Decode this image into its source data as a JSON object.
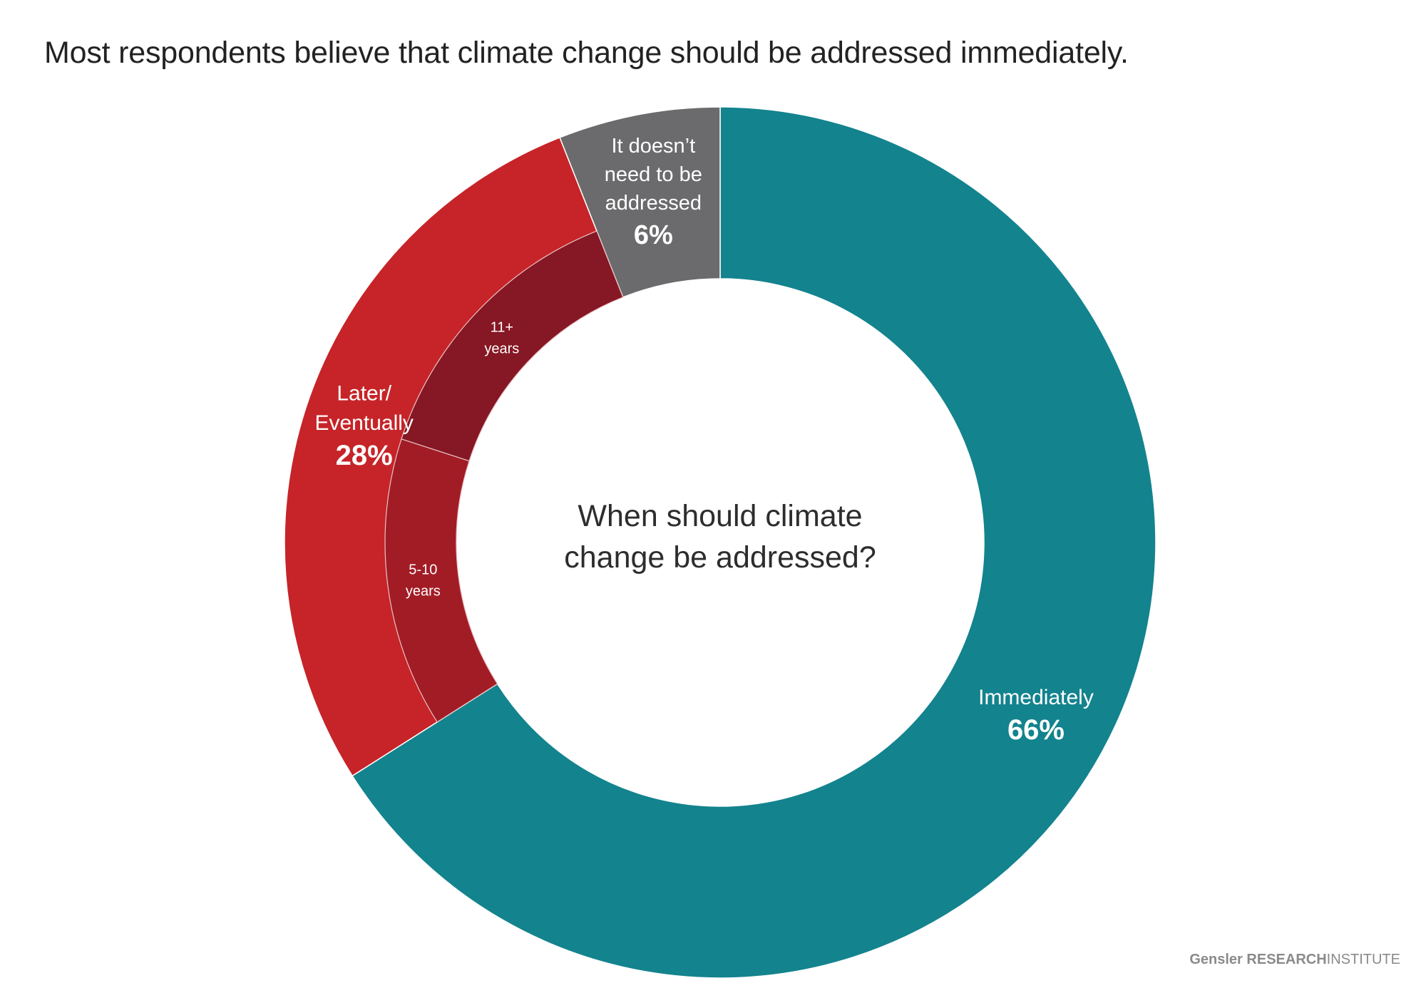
{
  "title": "Most respondents believe that climate change should be addressed immediately.",
  "chart_data": {
    "type": "pie",
    "center_text": [
      "When should climate",
      "change be addressed?"
    ],
    "slices": [
      {
        "label": [
          "Immediately"
        ],
        "value": 66,
        "value_label": "66%",
        "color": "#13838e"
      },
      {
        "label": [
          "Later/",
          "Eventually"
        ],
        "value": 28,
        "value_label": "28%",
        "color": "#c62428"
      },
      {
        "label": [
          "It doesn’t",
          "need to be",
          "addressed"
        ],
        "value": 6,
        "value_label": "6%",
        "color": "#6b6b6d"
      }
    ],
    "sub_slices": [
      {
        "label": [
          "5-10",
          "years"
        ],
        "color": "#a21c26"
      },
      {
        "label": [
          "11+",
          "years"
        ],
        "color": "#861724"
      }
    ]
  },
  "footer": {
    "brand": "Gensler",
    "research": "RESEARCH",
    "institute": "INSTITUTE"
  }
}
